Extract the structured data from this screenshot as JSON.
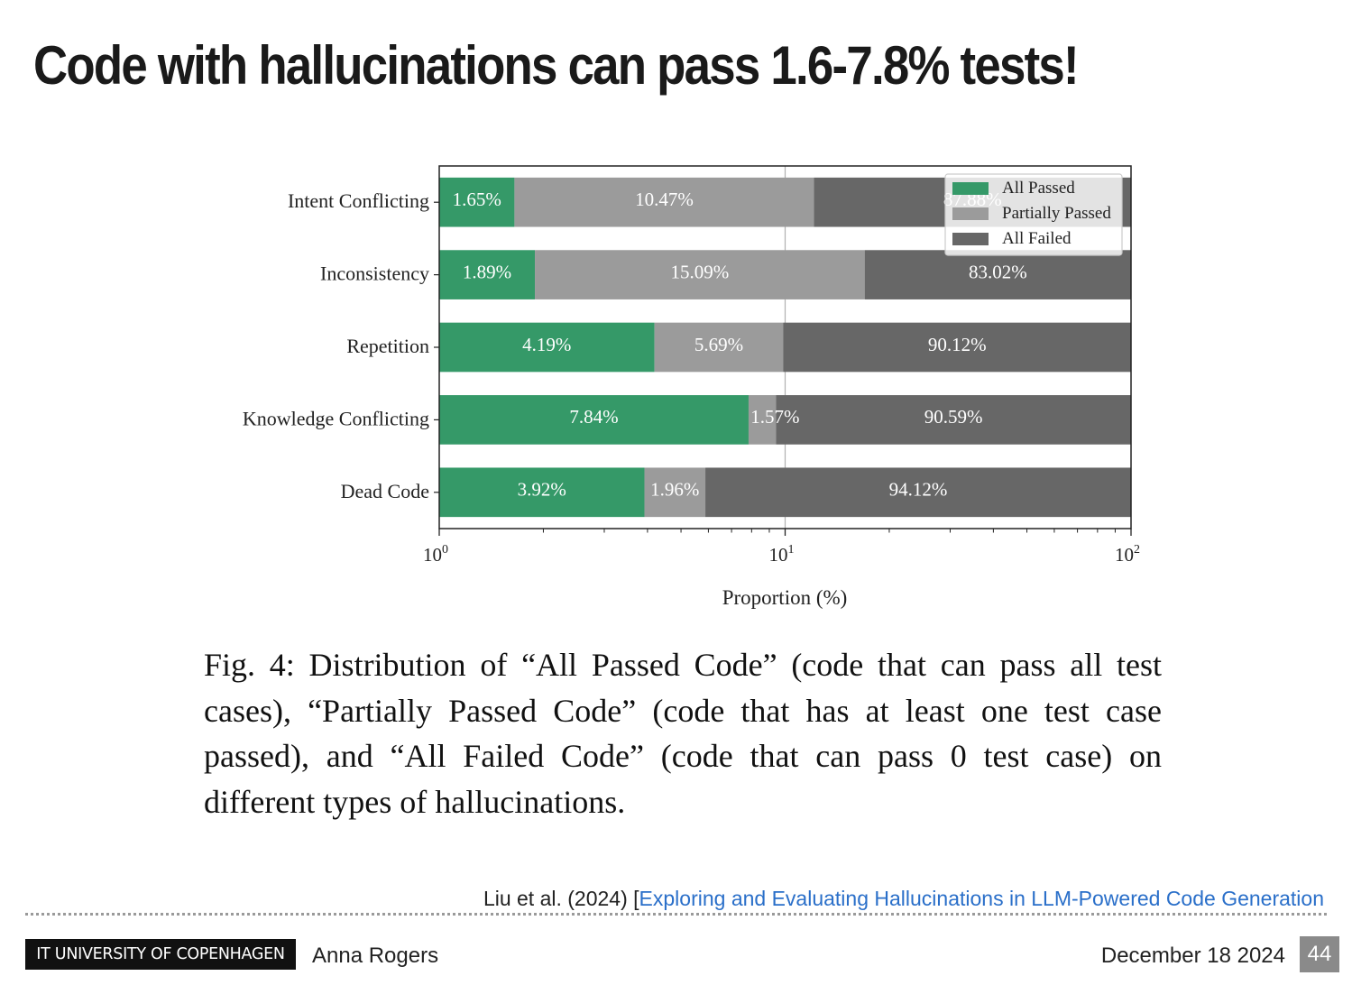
{
  "slide": {
    "title": "Code with hallucinations can pass 1.6-7.8% tests!",
    "caption": "Fig. 4: Distribution of “All Passed Code” (code that can pass all test cases), “Partially Passed Code” (code that has at least one test case passed), and “All Failed Code” (code that can pass 0 test case) on different types of hallucinations.",
    "citation": {
      "prefix": "Liu et al. (2024) [",
      "link_text": "Exploring and Evaluating Hallucinations in LLM-Powered Code Generation"
    },
    "footer": {
      "logo_text": "IT UNIVERSITY OF COPENHAGEN",
      "author": "Anna Rogers",
      "date": "December 18 2024",
      "page_number": "44"
    }
  },
  "chart_data": {
    "type": "bar",
    "orientation": "horizontal",
    "stacked": true,
    "x_scale": "log",
    "xlim": [
      1,
      100
    ],
    "x_ticks": [
      1,
      10,
      100
    ],
    "x_tick_labels": [
      {
        "base": "10",
        "exp": "0"
      },
      {
        "base": "10",
        "exp": "1"
      },
      {
        "base": "10",
        "exp": "2"
      }
    ],
    "xlabel": "Proportion (%)",
    "categories": [
      "Intent Conflicting",
      "Inconsistency",
      "Repetition",
      "Knowledge Conflicting",
      "Dead Code"
    ],
    "series": [
      {
        "name": "All Passed",
        "color": "#359968",
        "values": [
          1.65,
          1.89,
          4.19,
          7.84,
          3.92
        ],
        "labels": [
          "1.65%",
          "1.89%",
          "4.19%",
          "7.84%",
          "3.92%"
        ],
        "edge_x": [
          1.65,
          1.89,
          4.19,
          7.84,
          3.92
        ]
      },
      {
        "name": "Partially Passed",
        "color": "#9b9b9b",
        "values": [
          10.47,
          15.09,
          5.69,
          1.57,
          1.96
        ],
        "labels": [
          "10.47%",
          "15.09%",
          "5.69%",
          "1.57%",
          "1.96%"
        ],
        "edge_x": [
          12.12,
          16.98,
          9.88,
          9.41,
          5.88
        ]
      },
      {
        "name": "All Failed",
        "color": "#676767",
        "values": [
          87.88,
          83.02,
          90.12,
          90.59,
          94.12
        ],
        "labels": [
          "87.88%",
          "83.02%",
          "90.12%",
          "90.59%",
          "94.12%"
        ],
        "edge_x": [
          100,
          100,
          100,
          100,
          100
        ]
      }
    ],
    "grid": "vertical at 10",
    "legend_position": "top-right"
  }
}
